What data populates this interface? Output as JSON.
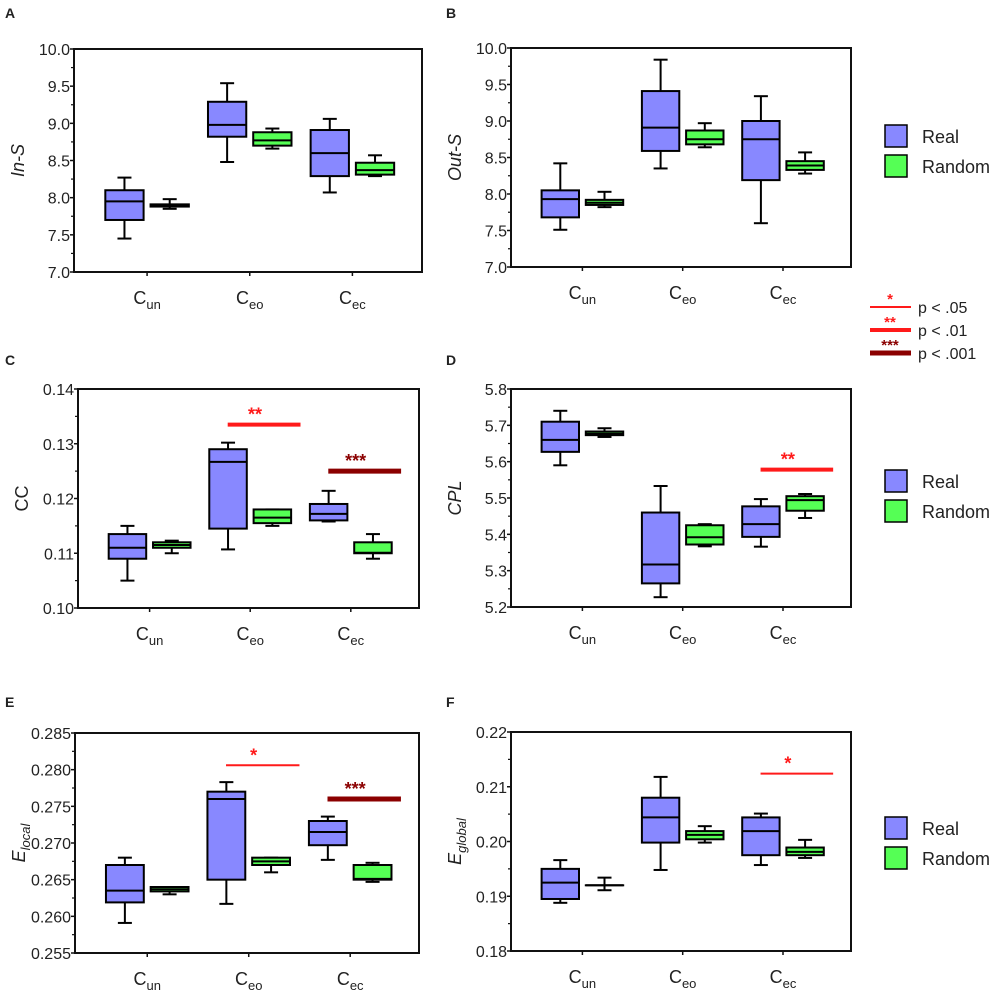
{
  "colors": {
    "real": "#8888ff",
    "random": "#55ff55",
    "sig_light": "#ff1a1a",
    "sig_dark": "#8b0000",
    "axis": "#111111"
  },
  "legend": {
    "real_label": "Real",
    "random_label": "Random"
  },
  "significance_legend": [
    {
      "stars": "*",
      "label": "p < .05",
      "level": "light-thin"
    },
    {
      "stars": "**",
      "label": "p < .01",
      "level": "light-thick"
    },
    {
      "stars": "***",
      "label": "p < .001",
      "level": "dark-thick"
    }
  ],
  "chart_data": [
    {
      "panel": "A",
      "type": "box",
      "ylabel": "In-S",
      "ylabel_sub": "",
      "ylim": [
        7.0,
        10.0
      ],
      "yticks": [
        "7.0",
        "7.5",
        "8.0",
        "8.5",
        "9.0",
        "9.5",
        "10.0"
      ],
      "ytick_values": [
        7.0,
        7.5,
        8.0,
        8.5,
        9.0,
        9.5,
        10.0
      ],
      "categories": [
        {
          "main": "C",
          "sub": "un"
        },
        {
          "main": "C",
          "sub": "eo"
        },
        {
          "main": "C",
          "sub": "ec"
        }
      ],
      "series": [
        {
          "name": "Real",
          "boxes": [
            [
              7.45,
              7.7,
              7.95,
              8.1,
              8.27
            ],
            [
              8.48,
              8.82,
              8.98,
              9.29,
              9.54
            ],
            [
              8.07,
              8.29,
              8.6,
              8.91,
              9.06
            ]
          ]
        },
        {
          "name": "Random",
          "boxes": [
            [
              7.85,
              7.88,
              7.9,
              7.91,
              7.98
            ],
            [
              8.66,
              8.7,
              8.77,
              8.88,
              8.93
            ],
            [
              8.29,
              8.31,
              8.37,
              8.47,
              8.57
            ]
          ]
        }
      ],
      "significance": []
    },
    {
      "panel": "B",
      "type": "box",
      "ylabel": "Out-S",
      "ylabel_sub": "",
      "ylim": [
        7.0,
        10.0
      ],
      "yticks": [
        "7.0",
        "7.5",
        "8.0",
        "8.5",
        "9.0",
        "9.5",
        "10.0"
      ],
      "ytick_values": [
        7.0,
        7.5,
        8.0,
        8.5,
        9.0,
        9.5,
        10.0
      ],
      "categories": [
        {
          "main": "C",
          "sub": "un"
        },
        {
          "main": "C",
          "sub": "eo"
        },
        {
          "main": "C",
          "sub": "ec"
        }
      ],
      "series": [
        {
          "name": "Real",
          "boxes": [
            [
              7.51,
              7.68,
              7.93,
              8.05,
              8.42
            ],
            [
              8.35,
              8.59,
              8.91,
              9.41,
              9.84
            ],
            [
              7.6,
              8.19,
              8.75,
              9.0,
              9.34
            ]
          ]
        },
        {
          "name": "Random",
          "boxes": [
            [
              7.82,
              7.85,
              7.88,
              7.92,
              8.03
            ],
            [
              8.64,
              8.68,
              8.75,
              8.87,
              8.97
            ],
            [
              8.28,
              8.33,
              8.39,
              8.45,
              8.57
            ]
          ]
        }
      ],
      "significance": []
    },
    {
      "panel": "C",
      "type": "box",
      "ylabel": "CC",
      "ylabel_sub": "",
      "ylim": [
        0.1,
        0.14
      ],
      "yticks": [
        "0.10",
        "0.11",
        "0.12",
        "0.13",
        "0.14"
      ],
      "ytick_values": [
        0.1,
        0.11,
        0.12,
        0.13,
        0.14
      ],
      "categories": [
        {
          "main": "C",
          "sub": "un"
        },
        {
          "main": "C",
          "sub": "eo"
        },
        {
          "main": "C",
          "sub": "ec"
        }
      ],
      "series": [
        {
          "name": "Real",
          "boxes": [
            [
              0.105,
              0.109,
              0.111,
              0.1135,
              0.115
            ],
            [
              0.1107,
              0.1145,
              0.1267,
              0.129,
              0.1302
            ],
            [
              0.1158,
              0.116,
              0.1172,
              0.119,
              0.1214
            ]
          ]
        },
        {
          "name": "Random",
          "boxes": [
            [
              0.11,
              0.111,
              0.1115,
              0.112,
              0.1123
            ],
            [
              0.115,
              0.1155,
              0.1165,
              0.118,
              0.118
            ],
            [
              0.109,
              0.11,
              0.1101,
              0.112,
              0.1135
            ]
          ]
        }
      ],
      "significance": [
        {
          "category": 1,
          "stars": "**",
          "level": "light-thick",
          "y": 0.1335
        },
        {
          "category": 2,
          "stars": "***",
          "level": "dark-thick",
          "y": 0.125
        }
      ]
    },
    {
      "panel": "D",
      "type": "box",
      "ylabel": "CPL",
      "ylabel_sub": "",
      "ylim": [
        5.2,
        5.8
      ],
      "yticks": [
        "5.2",
        "5.3",
        "5.4",
        "5.5",
        "5.6",
        "5.7",
        "5.8"
      ],
      "ytick_values": [
        5.2,
        5.3,
        5.4,
        5.5,
        5.6,
        5.7,
        5.8
      ],
      "categories": [
        {
          "main": "C",
          "sub": "un"
        },
        {
          "main": "C",
          "sub": "eo"
        },
        {
          "main": "C",
          "sub": "ec"
        }
      ],
      "series": [
        {
          "name": "Real",
          "boxes": [
            [
              5.59,
              5.627,
              5.66,
              5.71,
              5.74
            ],
            [
              5.227,
              5.265,
              5.317,
              5.46,
              5.533
            ],
            [
              5.366,
              5.393,
              5.428,
              5.477,
              5.497
            ]
          ]
        },
        {
          "name": "Random",
          "boxes": [
            [
              5.668,
              5.673,
              5.677,
              5.683,
              5.692
            ],
            [
              5.367,
              5.372,
              5.392,
              5.425,
              5.428
            ],
            [
              5.445,
              5.465,
              5.494,
              5.505,
              5.511
            ]
          ]
        }
      ],
      "significance": [
        {
          "category": 2,
          "stars": "**",
          "level": "light-thick",
          "y": 5.578
        }
      ]
    },
    {
      "panel": "E",
      "type": "box",
      "ylabel": "E",
      "ylabel_sub": "local",
      "ylim": [
        0.255,
        0.285
      ],
      "yticks": [
        "0.255",
        "0.260",
        "0.265",
        "0.270",
        "0.275",
        "0.280",
        "0.285"
      ],
      "ytick_values": [
        0.255,
        0.26,
        0.265,
        0.27,
        0.275,
        0.28,
        0.285
      ],
      "categories": [
        {
          "main": "C",
          "sub": "un"
        },
        {
          "main": "C",
          "sub": "eo"
        },
        {
          "main": "C",
          "sub": "ec"
        }
      ],
      "series": [
        {
          "name": "Real",
          "boxes": [
            [
              0.2591,
              0.2619,
              0.2635,
              0.267,
              0.268
            ],
            [
              0.2617,
              0.265,
              0.276,
              0.277,
              0.2783
            ],
            [
              0.2677,
              0.2697,
              0.2715,
              0.273,
              0.2736
            ]
          ]
        },
        {
          "name": "Random",
          "boxes": [
            [
              0.263,
              0.2634,
              0.2637,
              0.264,
              0.264
            ],
            [
              0.266,
              0.267,
              0.2675,
              0.268,
              0.268
            ],
            [
              0.2647,
              0.265,
              0.2651,
              0.267,
              0.2673
            ]
          ]
        }
      ],
      "significance": [
        {
          "category": 1,
          "stars": "*",
          "level": "light-thin",
          "y": 0.2806
        },
        {
          "category": 2,
          "stars": "***",
          "level": "dark-thick",
          "y": 0.276
        }
      ]
    },
    {
      "panel": "F",
      "type": "box",
      "ylabel": "E",
      "ylabel_sub": "global",
      "ylim": [
        0.18,
        0.22
      ],
      "yticks": [
        "0.18",
        "0.19",
        "0.20",
        "0.21",
        "0.22"
      ],
      "ytick_values": [
        0.18,
        0.19,
        0.2,
        0.21,
        0.22
      ],
      "categories": [
        {
          "main": "C",
          "sub": "un"
        },
        {
          "main": "C",
          "sub": "eo"
        },
        {
          "main": "C",
          "sub": "ec"
        }
      ],
      "series": [
        {
          "name": "Real",
          "boxes": [
            [
              0.1888,
              0.1895,
              0.1925,
              0.195,
              0.1966
            ],
            [
              0.1948,
              0.1998,
              0.2044,
              0.208,
              0.2118
            ],
            [
              0.1957,
              0.1975,
              0.2019,
              0.2044,
              0.2051
            ]
          ]
        },
        {
          "name": "Random",
          "boxes": [
            [
              0.1911,
              0.192,
              0.192,
              0.192,
              0.1934
            ],
            [
              0.1998,
              0.2004,
              0.2012,
              0.2019,
              0.2028
            ],
            [
              0.197,
              0.1975,
              0.1981,
              0.1989,
              0.2003
            ]
          ]
        }
      ],
      "significance": [
        {
          "category": 2,
          "stars": "*",
          "level": "light-thin",
          "y": 0.2124
        }
      ]
    }
  ]
}
